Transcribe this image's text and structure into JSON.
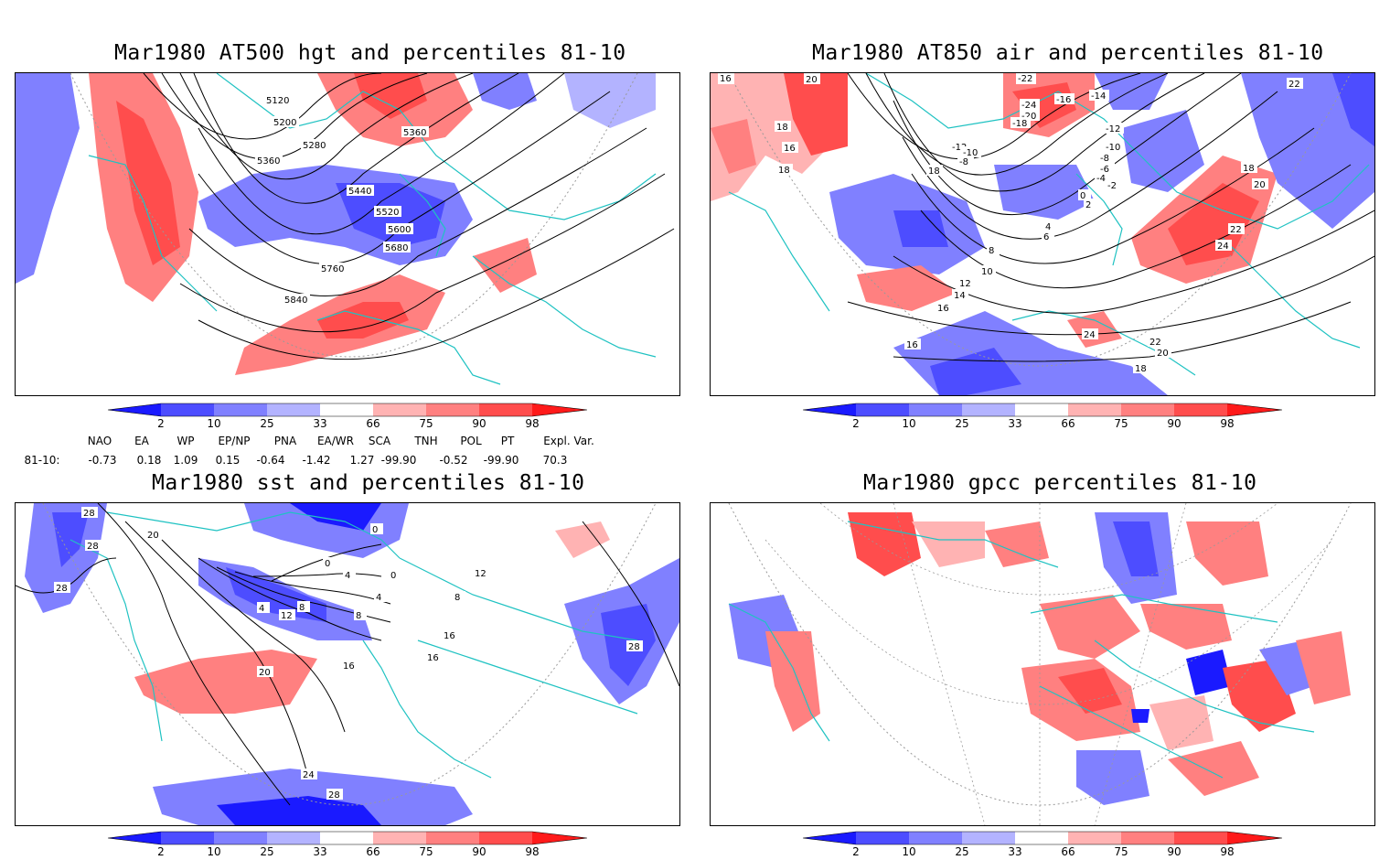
{
  "panels": [
    {
      "title": "Mar1980 AT500 hgt and percentiles 81-10",
      "contour_labels": [
        "5120",
        "5200",
        "5280",
        "5360",
        "5360",
        "5440",
        "5520",
        "5600",
        "5680",
        "5760",
        "5840"
      ]
    },
    {
      "title": "Mar1980 AT850 air and percentiles 81-10",
      "contour_labels": [
        "16",
        "18",
        "20",
        "18",
        "16",
        "18",
        "-22",
        "-24",
        "-20",
        "-18",
        "-16",
        "-14",
        "-12",
        "-10",
        "-8",
        "-12",
        "-10",
        "-8",
        "-6",
        "-4",
        "-2",
        "0",
        "2",
        "4",
        "6",
        "8",
        "10",
        "12",
        "14",
        "16",
        "18",
        "20",
        "22",
        "24",
        "24",
        "22",
        "20",
        "22",
        "18",
        "16"
      ]
    },
    {
      "title": "Mar1980 sst and percentiles 81-10",
      "contour_labels": [
        "28",
        "28",
        "28",
        "20",
        "0",
        "0",
        "0",
        "4",
        "4",
        "4",
        "8",
        "8",
        "8",
        "12",
        "16",
        "16",
        "16",
        "20",
        "24",
        "28",
        "28",
        "12"
      ]
    },
    {
      "title": "Mar1980 gpcc percentiles 81-10",
      "contour_labels": []
    }
  ],
  "colorbar": {
    "labels": [
      "2",
      "10",
      "25",
      "33",
      "66",
      "75",
      "90",
      "98"
    ],
    "colors": [
      "#1a1aff",
      "#4d4dff",
      "#8080ff",
      "#b3b3ff",
      "#ffffff",
      "#ffb3b3",
      "#ff8080",
      "#ff4d4d",
      "#ff1a1a"
    ]
  },
  "indices": {
    "headers": [
      "NAO",
      "EA",
      "WP",
      "EP/NP",
      "PNA",
      "EA/WR",
      "SCA",
      "TNH",
      "POL",
      "PT",
      "Expl. Var."
    ],
    "row_label": "81-10:",
    "values": [
      "-0.73",
      "0.18",
      "1.09",
      "0.15",
      "-0.64",
      "-1.42",
      "1.27",
      "-99.90",
      "-0.52",
      "-99.90",
      "70.3"
    ]
  }
}
